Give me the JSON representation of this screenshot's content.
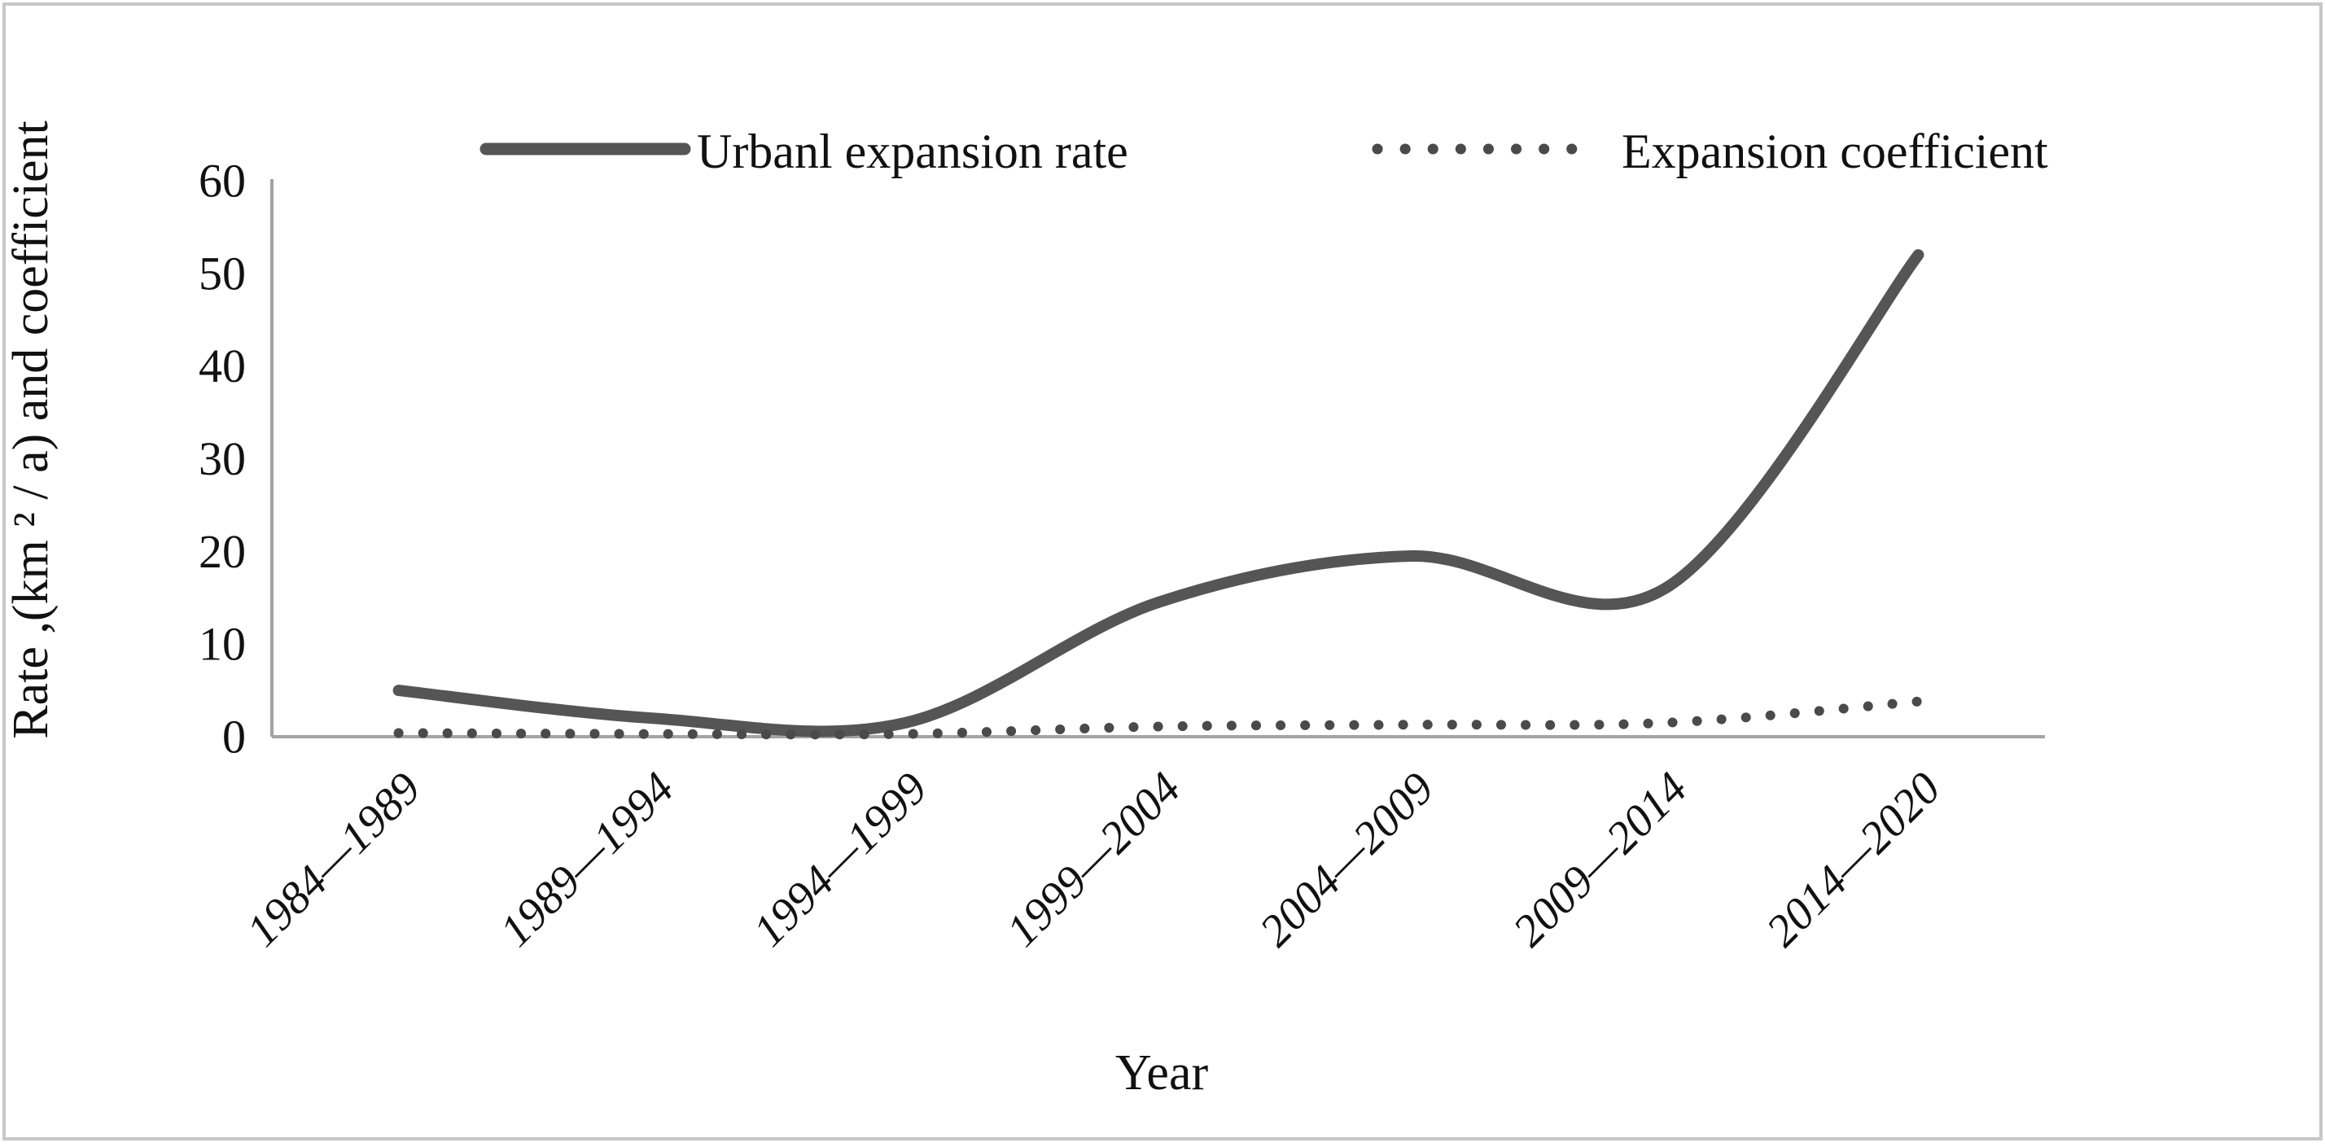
{
  "figure": {
    "y_axis_title": "Rate ,(km ² / a) and coefficient",
    "x_axis_title": "Year"
  },
  "legend": [
    {
      "label": "Urbanl expansion rate",
      "style": "solid"
    },
    {
      "label": "Expansion coefficient",
      "style": "dotted"
    }
  ],
  "colors": {
    "series_solid": "#555555",
    "series_dotted": "#4a4a4a",
    "axis": "#a3a3a3",
    "frame": "#c7c7c7",
    "text": "#111111"
  },
  "chart_data": {
    "type": "line",
    "title": "",
    "xlabel": "Year",
    "ylabel": "Rate ,(km ² / a) and coefficient",
    "categories": [
      "1984—1989",
      "1989—1994",
      "1994—1999",
      "1999—2004",
      "2004—2009",
      "2009—2014",
      "2014—2020"
    ],
    "series": [
      {
        "name": "Urbanl expansion rate",
        "style": "solid-smooth",
        "values": [
          5,
          2,
          1.5,
          14.5,
          19.5,
          16,
          52
        ]
      },
      {
        "name": "Expansion coefficient",
        "style": "dotted-smooth",
        "values": [
          0.4,
          0.3,
          0.3,
          1.1,
          1.3,
          1.5,
          3.8
        ]
      }
    ],
    "yticks": [
      0,
      10,
      20,
      30,
      40,
      50,
      60
    ],
    "ylim": [
      0,
      60
    ],
    "grid": false,
    "legend_position": "top-center"
  }
}
